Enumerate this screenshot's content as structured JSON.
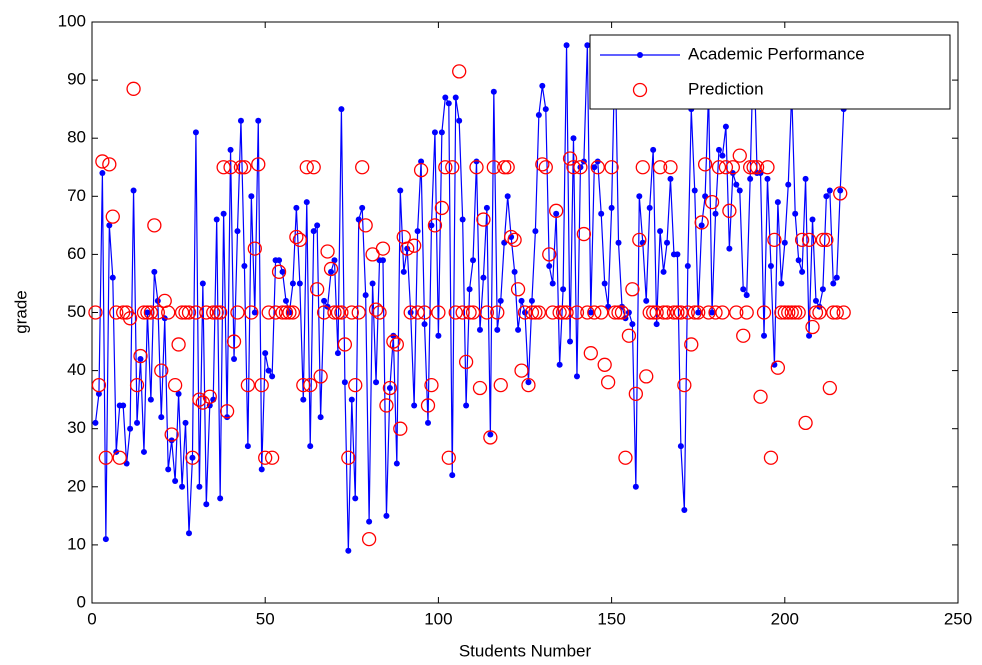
{
  "chart_data": {
    "type": "line-scatter",
    "xlabel": "Students Number",
    "ylabel": "grade",
    "xlim": [
      0,
      250
    ],
    "xticks": [
      0,
      50,
      100,
      150,
      200,
      250
    ],
    "ylim": [
      0,
      100
    ],
    "yticks": [
      0,
      10,
      20,
      30,
      40,
      50,
      60,
      70,
      80,
      90,
      100
    ],
    "legend": "upper right",
    "grid": false,
    "x": [
      1,
      2,
      3,
      4,
      5,
      6,
      7,
      8,
      9,
      10,
      11,
      12,
      13,
      14,
      15,
      16,
      17,
      18,
      19,
      20,
      21,
      22,
      23,
      24,
      25,
      26,
      27,
      28,
      29,
      30,
      31,
      32,
      33,
      34,
      35,
      36,
      37,
      38,
      39,
      40,
      41,
      42,
      43,
      44,
      45,
      46,
      47,
      48,
      49,
      50,
      51,
      52,
      53,
      54,
      55,
      56,
      57,
      58,
      59,
      60,
      61,
      62,
      63,
      64,
      65,
      66,
      67,
      68,
      69,
      70,
      71,
      72,
      73,
      74,
      75,
      76,
      77,
      78,
      79,
      80,
      81,
      82,
      83,
      84,
      85,
      86,
      87,
      88,
      89,
      90,
      91,
      92,
      93,
      94,
      95,
      96,
      97,
      98,
      99,
      100,
      101,
      102,
      103,
      104,
      105,
      106,
      107,
      108,
      109,
      110,
      111,
      112,
      113,
      114,
      115,
      116,
      117,
      118,
      119,
      120,
      121,
      122,
      123,
      124,
      125,
      126,
      127,
      128,
      129,
      130,
      131,
      132,
      133,
      134,
      135,
      136,
      137,
      138,
      139,
      140,
      141,
      142,
      143,
      144,
      145,
      146,
      147,
      148,
      149,
      150,
      151,
      152,
      153,
      154,
      155,
      156,
      157,
      158,
      159,
      160,
      161,
      162,
      163,
      164,
      165,
      166,
      167,
      168,
      169,
      170,
      171,
      172,
      173,
      174,
      175,
      176,
      177,
      178,
      179,
      180,
      181,
      182,
      183,
      184,
      185,
      186,
      187,
      188,
      189,
      190,
      191,
      192,
      193,
      194,
      195,
      196,
      197,
      198,
      199,
      200,
      201,
      202,
      203,
      204,
      205,
      206,
      207,
      208,
      209,
      210,
      211,
      212,
      213,
      214,
      215,
      216,
      217
    ],
    "series": [
      {
        "name": "Academic Performance",
        "color": "#0000ff",
        "style": "line-dot",
        "values": [
          31,
          36,
          74,
          11,
          65,
          56,
          26,
          34,
          34,
          24,
          30,
          71,
          31,
          42,
          26,
          50,
          35,
          57,
          52,
          32,
          49,
          23,
          28,
          21,
          36,
          20,
          31,
          12,
          25,
          81,
          20,
          55,
          17,
          34,
          35,
          66,
          18,
          67,
          32,
          78,
          42,
          64,
          83,
          58,
          27,
          70,
          50,
          83,
          23,
          43,
          40,
          39,
          59,
          59,
          57,
          52,
          50,
          55,
          68,
          55,
          35,
          69,
          27,
          64,
          65,
          32,
          52,
          51,
          57,
          59,
          43,
          85,
          38,
          9,
          35,
          18,
          66,
          68,
          53,
          14,
          55,
          38,
          59,
          59,
          15,
          37,
          46,
          24,
          71,
          57,
          61,
          50,
          34,
          64,
          76,
          48,
          31,
          65,
          81,
          46,
          81,
          87,
          86,
          22,
          87,
          83,
          66,
          34,
          54,
          59,
          76,
          47,
          56,
          68,
          29,
          88,
          47,
          52,
          62,
          70,
          63,
          57,
          47,
          52,
          50,
          38,
          52,
          64,
          84,
          89,
          85,
          58,
          55,
          67,
          41,
          54,
          96,
          45,
          80,
          39,
          75,
          76,
          96,
          50,
          75,
          76,
          67,
          55,
          51,
          68,
          96,
          62,
          51,
          49,
          50,
          48,
          20,
          70,
          62,
          52,
          68,
          78,
          48,
          64,
          57,
          62,
          73,
          60,
          60,
          27,
          16,
          58,
          85,
          71,
          50,
          65,
          70,
          88,
          50,
          67,
          78,
          77,
          82,
          61,
          74,
          72,
          71,
          54,
          53,
          73,
          97,
          74,
          74,
          46,
          73,
          58,
          41,
          69,
          55,
          62,
          72,
          88,
          67,
          59,
          57,
          73,
          46,
          66,
          52,
          51,
          54,
          70,
          71,
          55,
          56,
          71,
          85
        ]
      },
      {
        "name": "Prediction",
        "color": "#ff0000",
        "style": "circle",
        "values": [
          50,
          37.5,
          76,
          25,
          75.5,
          66.5,
          50,
          25,
          50,
          50,
          49,
          88.5,
          37.5,
          42.5,
          50,
          50,
          50,
          65,
          50,
          40,
          52,
          50,
          29,
          37.5,
          44.5,
          50,
          50,
          50,
          25,
          50,
          35,
          34.5,
          50,
          35.5,
          50,
          50,
          50,
          75,
          33,
          75,
          45,
          50,
          75,
          75,
          37.5,
          50,
          61,
          75.5,
          37.5,
          25,
          50,
          25,
          50,
          57,
          50,
          50,
          50,
          50,
          63,
          62.5,
          37.5,
          75,
          37.5,
          75,
          54,
          39,
          50,
          60.5,
          57.5,
          50,
          50,
          50,
          44.5,
          25,
          50,
          37.5,
          50,
          75,
          65,
          11,
          60,
          50.5,
          50,
          61,
          34,
          37,
          45,
          44.5,
          30,
          63,
          61,
          50,
          61.5,
          50,
          74.5,
          50,
          34,
          37.5,
          65,
          50,
          68,
          75,
          25,
          75,
          50,
          91.5,
          50,
          41.5,
          50,
          50,
          75,
          37,
          66,
          50,
          28.5,
          75,
          50,
          37.5,
          75,
          75,
          63,
          62.5,
          54,
          40,
          50,
          37.5,
          50,
          50,
          50,
          75.5,
          75,
          60,
          50,
          67.5,
          50,
          50,
          50,
          76.5,
          75,
          50,
          75,
          63.5,
          50,
          43,
          50,
          75,
          50,
          41,
          38,
          75,
          50,
          50,
          50,
          25,
          46,
          54,
          36,
          62.5,
          75,
          39,
          50,
          50,
          50,
          75,
          50,
          50,
          75,
          50,
          50,
          50,
          37.5,
          50,
          44.5,
          50,
          50,
          65.5,
          75.5,
          50,
          69,
          50,
          75,
          50,
          75,
          67.5,
          75,
          50,
          77,
          46,
          50,
          75,
          75,
          75,
          35.5,
          50,
          75,
          25,
          62.5,
          40.5,
          50,
          50,
          50,
          50,
          50,
          50,
          62.5,
          31,
          62.5,
          47.5,
          50,
          50,
          62.5,
          62.5,
          37,
          50,
          50,
          70.5,
          50
        ]
      }
    ]
  }
}
